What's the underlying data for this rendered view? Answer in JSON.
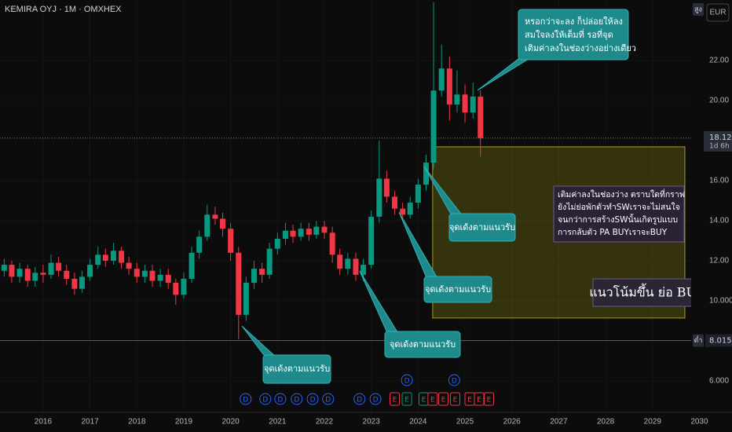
{
  "chart_data": {
    "type": "candlestick",
    "title": "KEMIRA OYJ · 1M · OMXHEX",
    "currency": "EUR",
    "high_tag": "สูง",
    "low_tag": "ต่ำ",
    "countdown": "1d 6h",
    "last_price": 18.12,
    "low_price": 8.015,
    "up_color": "#089981",
    "down_color": "#f23645",
    "xlim": [
      2015.08,
      2030.16
    ],
    "ylim": [
      4.43,
      25.02
    ],
    "xticks": [
      2016,
      2017,
      2018,
      2019,
      2020,
      2021,
      2022,
      2023,
      2024,
      2025,
      2026,
      2027,
      2028,
      2029,
      2030
    ],
    "yticks": [
      {
        "value": 6,
        "label": "6.000"
      },
      {
        "value": 10,
        "label": "10.000"
      },
      {
        "value": 12,
        "label": "12.00"
      },
      {
        "value": 14,
        "label": "14.00"
      },
      {
        "value": 16,
        "label": "16.00"
      },
      {
        "value": 20,
        "label": "20.00"
      },
      {
        "value": 22,
        "label": "22.00"
      }
    ],
    "candles": {
      "x": [
        2015.17,
        2015.33,
        2015.5,
        2015.67,
        2015.83,
        2016.0,
        2016.17,
        2016.33,
        2016.5,
        2016.67,
        2016.83,
        2017.0,
        2017.17,
        2017.33,
        2017.5,
        2017.67,
        2017.83,
        2018.0,
        2018.17,
        2018.33,
        2018.5,
        2018.67,
        2018.83,
        2019.0,
        2019.17,
        2019.33,
        2019.5,
        2019.67,
        2019.83,
        2020.0,
        2020.17,
        2020.33,
        2020.5,
        2020.67,
        2020.83,
        2021.0,
        2021.17,
        2021.33,
        2021.5,
        2021.67,
        2021.83,
        2022.0,
        2022.17,
        2022.33,
        2022.5,
        2022.67,
        2022.83,
        2023.0,
        2023.17,
        2023.33,
        2023.5,
        2023.67,
        2023.83,
        2024.0,
        2024.17,
        2024.33,
        2024.5,
        2024.67,
        2024.83,
        2025.0,
        2025.17,
        2025.33
      ],
      "open": [
        11.5,
        11.8,
        11.2,
        11.6,
        11.0,
        11.4,
        11.3,
        11.9,
        11.5,
        11.1,
        10.6,
        11.2,
        11.8,
        12.3,
        12.0,
        12.5,
        11.9,
        11.6,
        11.2,
        11.5,
        11.0,
        11.3,
        10.9,
        10.3,
        11.1,
        12.4,
        13.2,
        14.3,
        14.1,
        13.6,
        12.4,
        9.3,
        10.9,
        11.6,
        11.3,
        12.6,
        13.1,
        13.5,
        13.2,
        13.6,
        13.3,
        13.7,
        13.4,
        12.3,
        11.6,
        12.1,
        11.3,
        11.8,
        14.2,
        16.1,
        15.2,
        14.6,
        14.3,
        14.9,
        15.8,
        16.9,
        20.5,
        21.6,
        19.8,
        20.3,
        19.4,
        20.2
      ],
      "high": [
        12.1,
        12.0,
        11.9,
        11.8,
        11.7,
        11.8,
        12.3,
        12.2,
        11.8,
        11.4,
        11.5,
        12.1,
        12.7,
        12.6,
        12.9,
        12.7,
        12.2,
        11.9,
        11.8,
        11.8,
        11.6,
        11.6,
        11.1,
        11.4,
        12.7,
        13.5,
        14.8,
        14.7,
        14.4,
        13.9,
        12.7,
        11.2,
        12.0,
        11.9,
        12.9,
        13.4,
        13.9,
        13.8,
        13.9,
        13.9,
        14.0,
        14.0,
        13.7,
        12.6,
        12.4,
        12.4,
        12.1,
        14.5,
        18.0,
        16.5,
        15.5,
        14.9,
        15.2,
        16.1,
        17.3,
        24.9,
        22.8,
        22.2,
        21.5,
        20.8,
        20.9,
        20.5
      ],
      "low": [
        11.2,
        10.9,
        10.9,
        10.7,
        10.7,
        10.9,
        11.1,
        11.2,
        10.8,
        10.3,
        10.4,
        11.0,
        11.6,
        11.7,
        11.8,
        11.6,
        11.3,
        10.9,
        10.9,
        10.7,
        10.7,
        10.6,
        9.8,
        10.1,
        10.9,
        12.1,
        13.0,
        13.8,
        13.2,
        12.0,
        8.08,
        9.0,
        10.6,
        10.9,
        11.1,
        12.3,
        12.8,
        12.9,
        13.0,
        13.0,
        13.1,
        13.1,
        11.9,
        11.3,
        11.3,
        11.0,
        11.0,
        11.6,
        13.9,
        14.9,
        14.3,
        14.0,
        14.1,
        14.6,
        15.5,
        16.6,
        20.2,
        19.0,
        19.4,
        18.9,
        19.1,
        17.2
      ],
      "close": [
        11.8,
        11.2,
        11.6,
        11.0,
        11.4,
        11.3,
        11.9,
        11.5,
        11.1,
        10.6,
        11.2,
        11.8,
        12.3,
        12.0,
        12.5,
        11.9,
        11.6,
        11.2,
        11.5,
        11.0,
        11.3,
        10.9,
        10.3,
        11.1,
        12.4,
        13.2,
        14.3,
        14.1,
        13.6,
        12.4,
        9.3,
        10.9,
        11.6,
        11.3,
        12.6,
        13.1,
        13.5,
        13.2,
        13.6,
        13.3,
        13.7,
        13.4,
        12.3,
        11.6,
        12.1,
        11.3,
        11.8,
        14.2,
        16.1,
        15.2,
        14.6,
        14.3,
        14.9,
        15.8,
        16.9,
        20.5,
        21.6,
        19.8,
        20.3,
        19.4,
        20.2,
        18.12
      ]
    },
    "zone": {
      "x": [
        2024.31,
        2029.69
      ],
      "y": [
        9.14,
        17.69
      ]
    },
    "events": [
      {
        "label": "D",
        "x": 2020.32,
        "color": "#2962ff"
      },
      {
        "label": "D",
        "x": 2020.74,
        "color": "#2962ff"
      },
      {
        "label": "D",
        "x": 2021.06,
        "color": "#2962ff"
      },
      {
        "label": "D",
        "x": 2021.41,
        "color": "#2962ff"
      },
      {
        "label": "D",
        "x": 2021.75,
        "color": "#2962ff"
      },
      {
        "label": "D",
        "x": 2022.08,
        "color": "#2962ff"
      },
      {
        "label": "D",
        "x": 2022.75,
        "color": "#2962ff"
      },
      {
        "label": "D",
        "x": 2023.09,
        "color": "#2962ff"
      },
      {
        "label": "E",
        "x": 2023.5,
        "color": "#f23645"
      },
      {
        "label": "E",
        "x": 2023.76,
        "color": "#089981"
      },
      {
        "label": "D",
        "x": 2023.76,
        "color": "#2962ff"
      },
      {
        "label": "E",
        "x": 2024.12,
        "color": "#089981"
      },
      {
        "label": "E",
        "x": 2024.31,
        "color": "#f23645"
      },
      {
        "label": "E",
        "x": 2024.54,
        "color": "#f23645"
      },
      {
        "label": "E",
        "x": 2024.79,
        "color": "#f23645"
      },
      {
        "label": "D",
        "x": 2024.77,
        "color": "#2962ff"
      },
      {
        "label": "E",
        "x": 2025.1,
        "color": "#f23645"
      },
      {
        "label": "E",
        "x": 2025.3,
        "color": "#f23645"
      },
      {
        "label": "E",
        "x": 2025.51,
        "color": "#f23645"
      }
    ],
    "annotations": [
      {
        "lines": [
          "หรอกว่าจะลง ก็ปล่อยให้ลง",
          "สมใจลงให้เต็มที่ รอที่จุด",
          "เติมค่าลงในช่องว่างอย่างเดียว"
        ]
      },
      {
        "lines": [
          "จุดเด้งตามแนวรับ"
        ]
      },
      {
        "lines": [
          "จุดเด้งตามแนวรับ"
        ]
      },
      {
        "lines": [
          "จุดเด้งตามแนวรับ"
        ]
      },
      {
        "lines": [
          "จุดเด้งตามแนวรับ"
        ]
      },
      {
        "lines": [
          "เติมค่าลงในช่องว่าง ตราบใดที่กราฟ",
          "ยังไม่ย่อพักตัวทำSWเราจะไม่สนใจ",
          "จนกว่าการสร้างSWนั้นเกิดรูปแบบ",
          "การกลับตัว PA BUYเราจะBUY"
        ]
      },
      {
        "lines": [
          "แนวโน้มขึ้น ย่อ BUY"
        ]
      }
    ]
  }
}
